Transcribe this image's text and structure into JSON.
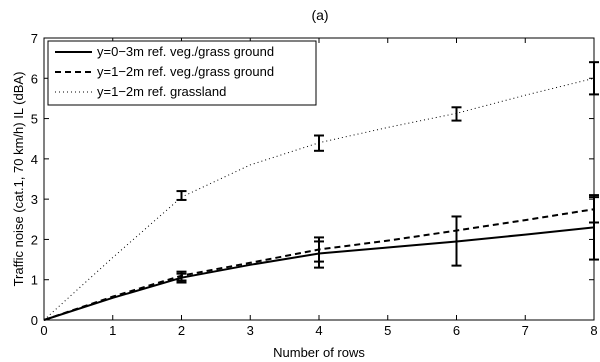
{
  "chart_data": {
    "type": "line",
    "title": "(a)",
    "xlabel": "Number of rows",
    "ylabel": "Traffic noise (cat.1, 70 km/h) IL (dBA)",
    "xlim": [
      0,
      8
    ],
    "ylim": [
      0,
      7
    ],
    "xticks": [
      0,
      1,
      2,
      3,
      4,
      5,
      6,
      7,
      8
    ],
    "yticks": [
      0,
      1,
      2,
      3,
      4,
      5,
      6,
      7
    ],
    "grid": false,
    "legend_position": "top-left",
    "series": [
      {
        "name": "y=0−3m ref. veg./grass ground",
        "style": "solid",
        "color": "#000000",
        "x": [
          0,
          1,
          2,
          3,
          4,
          5,
          6,
          7,
          8
        ],
        "y": [
          0,
          0.55,
          1.05,
          1.37,
          1.65,
          1.8,
          1.95,
          2.12,
          2.3
        ],
        "error_bars": [
          {
            "x": 2,
            "low": 0.93,
            "high": 1.15
          },
          {
            "x": 4,
            "low": 1.3,
            "high": 1.95
          },
          {
            "x": 6,
            "low": 1.35,
            "high": 2.57
          },
          {
            "x": 8,
            "low": 1.5,
            "high": 3.05
          }
        ]
      },
      {
        "name": "y=1−2m ref. veg./grass ground",
        "style": "dashed",
        "color": "#000000",
        "x": [
          0,
          1,
          2,
          3,
          4,
          5,
          6,
          7,
          8
        ],
        "y": [
          0,
          0.58,
          1.1,
          1.42,
          1.75,
          1.97,
          2.22,
          2.48,
          2.75
        ],
        "error_bars": [
          {
            "x": 2,
            "low": 0.98,
            "high": 1.2
          },
          {
            "x": 4,
            "low": 1.45,
            "high": 2.05
          },
          {
            "x": 8,
            "low": 2.42,
            "high": 3.1
          }
        ]
      },
      {
        "name": "y=1−2m ref. grassland",
        "style": "dotted",
        "color": "#000000",
        "x": [
          0,
          1,
          2,
          3,
          4,
          5,
          6,
          7,
          8
        ],
        "y": [
          0,
          1.55,
          3.05,
          3.85,
          4.4,
          4.78,
          5.13,
          5.58,
          6.0
        ],
        "error_bars": [
          {
            "x": 2,
            "low": 2.98,
            "high": 3.2
          },
          {
            "x": 4,
            "low": 4.2,
            "high": 4.58
          },
          {
            "x": 6,
            "low": 4.95,
            "high": 5.28
          },
          {
            "x": 8,
            "low": 5.6,
            "high": 6.4
          }
        ]
      }
    ]
  }
}
